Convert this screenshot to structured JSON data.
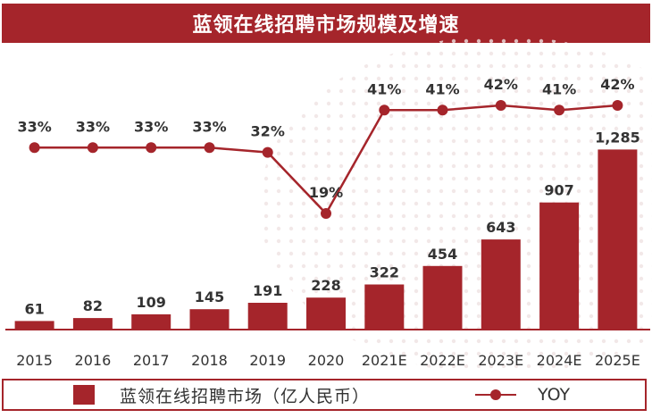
{
  "title": "蓝领在线招聘市场规模及增速",
  "chart_data": {
    "type": "bar+line",
    "categories": [
      "2015",
      "2016",
      "2017",
      "2018",
      "2019",
      "2020",
      "2021E",
      "2022E",
      "2023E",
      "2024E",
      "2025E"
    ],
    "series": [
      {
        "name": "蓝领在线招聘市场（亿人民币）",
        "type": "bar",
        "values": [
          61,
          82,
          109,
          145,
          191,
          228,
          322,
          454,
          643,
          907,
          1285
        ],
        "labels": [
          "61",
          "82",
          "109",
          "145",
          "191",
          "228",
          "322",
          "454",
          "643",
          "907",
          "1,285"
        ]
      },
      {
        "name": "YOY",
        "type": "line",
        "values": [
          33,
          33,
          33,
          33,
          32,
          19,
          41,
          41,
          42,
          41,
          42
        ],
        "labels": [
          "33%",
          "33%",
          "33%",
          "33%",
          "32%",
          "19%",
          "41%",
          "41%",
          "42%",
          "41%",
          "42%"
        ]
      }
    ],
    "bar_range": [
      0,
      1300
    ],
    "yoy_range": [
      19,
      42
    ],
    "colors": {
      "bar": "#a5252b",
      "line": "#a5252b",
      "axis": "#a5252b",
      "text": "#333333"
    }
  },
  "legend": {
    "bar_label": "蓝领在线招聘市场（亿人民币）",
    "line_label": "YOY"
  }
}
